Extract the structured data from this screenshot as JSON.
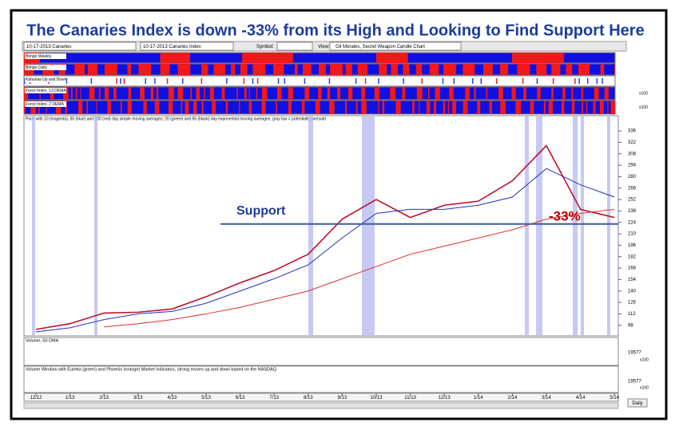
{
  "chart_data": {
    "type": "line",
    "title": "The Canaries Index is down -33% from its High and Looking to Find Support Here",
    "toolbar": {
      "chart": "10-17-2013 Canaries",
      "index": "10-17-2013 Canaries Index",
      "symbol": "Symbol:",
      "view": "View:",
      "view_name": "Gil Morales, Secret Weapon Candle Chart"
    },
    "strips": [
      "Bongo Weekly",
      "Bongo Daily",
      "Kahunas Up and Down",
      "Force Index, 13 DEMA",
      "Force Index, 2 DEMA"
    ],
    "strip_scale": "x100",
    "price_caption": "Price with 10 (magenta), 50 (blue) and 200 (red) day simple moving averages; 20 (green) and 65 (black) day exponential moving averages; gray bar = potentially oversold",
    "volume_caption": "Volume, 50 DMA",
    "volume_window_caption": "Volume Window with Eureka (green) and Phoenix (orange) Market indicators, strong moves up and down based on the NASDAQ",
    "volume_tick": "19577",
    "volume_scale": "x100",
    "period_button": "Daily",
    "categories": [
      "12/12",
      "1/13",
      "2/13",
      "3/13",
      "4/13",
      "5/13",
      "6/13",
      "7/13",
      "8/13",
      "9/13",
      "10/13",
      "11/13",
      "12/13",
      "1/14",
      "2/14",
      "3/14",
      "4/14",
      "5/14"
    ],
    "series": [
      {
        "name": "Price",
        "color": "#c0102a",
        "values": [
          93,
          100,
          113,
          114,
          118,
          133,
          150,
          165,
          185,
          228,
          252,
          230,
          245,
          250,
          275,
          318,
          240,
          230
        ]
      },
      {
        "name": "50 day SMA",
        "color": "#2030c0",
        "values": [
          90,
          95,
          105,
          112,
          115,
          125,
          140,
          155,
          172,
          205,
          235,
          240,
          240,
          245,
          255,
          290,
          270,
          255
        ]
      },
      {
        "name": "200 day SMA",
        "color": "#e03030",
        "values": [
          null,
          null,
          96,
          100,
          105,
          112,
          120,
          130,
          140,
          155,
          170,
          185,
          195,
          205,
          215,
          228,
          235,
          240
        ]
      }
    ],
    "ylim": [
      88,
      340
    ],
    "yticks": [
      98,
      112,
      126,
      140,
      154,
      168,
      182,
      196,
      210,
      224,
      238,
      252,
      266,
      280,
      294,
      308,
      322,
      336
    ],
    "annotations": [
      {
        "text": "Support",
        "value": 222
      },
      {
        "text": "-33%"
      }
    ]
  }
}
